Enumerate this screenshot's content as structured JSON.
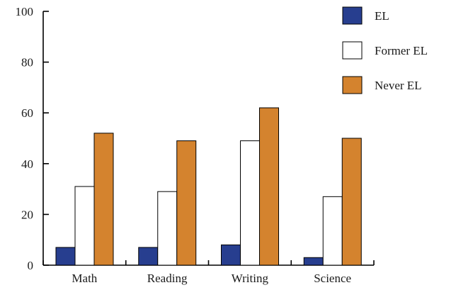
{
  "chart_data": {
    "type": "bar",
    "title": "",
    "xlabel": "",
    "ylabel": "",
    "categories": [
      "Math",
      "Reading",
      "Writing",
      "Science"
    ],
    "series": [
      {
        "name": "EL",
        "values": [
          7,
          7,
          8,
          3
        ],
        "color": "#273e8f"
      },
      {
        "name": "Former EL",
        "values": [
          31,
          29,
          49,
          27
        ],
        "color": "#ffffff"
      },
      {
        "name": "Never EL",
        "values": [
          52,
          49,
          62,
          50
        ],
        "color": "#d4832e"
      }
    ],
    "ylim": [
      0,
      100
    ],
    "yticks": [
      0,
      20,
      40,
      60,
      80,
      100
    ],
    "grid": false,
    "legend_position": "top-right"
  }
}
